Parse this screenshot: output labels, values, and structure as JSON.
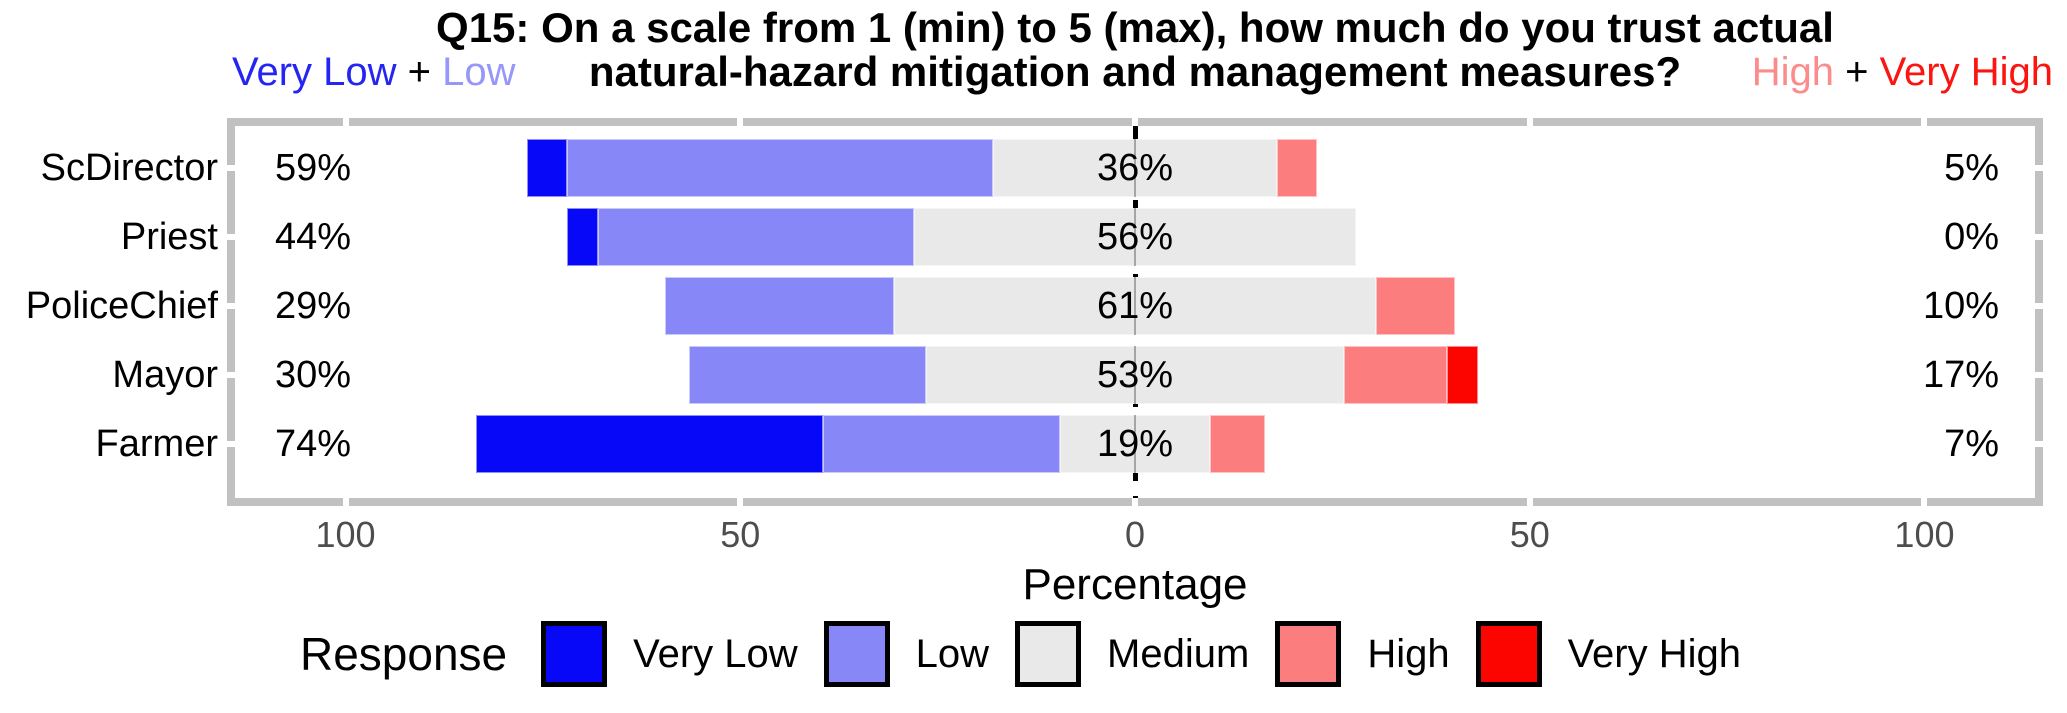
{
  "title": {
    "line1": "Q15: On a scale from 1 (min) to 5 (max), how much do you trust actual",
    "line2": "natural-hazard mitigation and management measures?"
  },
  "annotations": {
    "top_left": {
      "segments": [
        {
          "text": "Very Low",
          "color": "#2525f3"
        },
        {
          "text": " + ",
          "color": "#000000"
        },
        {
          "text": "Low",
          "color": "#9797fa"
        }
      ]
    },
    "top_right": {
      "segments": [
        {
          "text": "High",
          "color": "#fc8c8c"
        },
        {
          "text": " + ",
          "color": "#000000"
        },
        {
          "text": "Very High",
          "color": "#fb1511"
        }
      ]
    }
  },
  "chart_data": {
    "type": "bar",
    "variant": "diverging-stacked-likert",
    "categories": [
      "ScDirector",
      "Priest",
      "PoliceChief",
      "Mayor",
      "Farmer"
    ],
    "levels": [
      "Very Low",
      "Low",
      "Medium",
      "High",
      "Very High"
    ],
    "colors": {
      "Very Low": "#0808f8",
      "Low": "#8787f8",
      "Medium": "#e9e9e9",
      "High": "#fc7d7d",
      "Very High": "#fc0500"
    },
    "values": {
      "ScDirector": {
        "Very Low": 5,
        "Low": 54,
        "Medium": 36,
        "High": 5,
        "Very High": 0
      },
      "Priest": {
        "Very Low": 4,
        "Low": 40,
        "Medium": 56,
        "High": 0,
        "Very High": 0
      },
      "PoliceChief": {
        "Very Low": 0,
        "Low": 29,
        "Medium": 61,
        "High": 10,
        "Very High": 0
      },
      "Mayor": {
        "Very Low": 0,
        "Low": 30,
        "Medium": 53,
        "High": 13,
        "Very High": 4
      },
      "Farmer": {
        "Very Low": 44,
        "Low": 30,
        "Medium": 19,
        "High": 7,
        "Very High": 0
      }
    },
    "row_labels": {
      "left": [
        "59%",
        "44%",
        "29%",
        "30%",
        "74%"
      ],
      "center": [
        "36%",
        "56%",
        "61%",
        "53%",
        "19%"
      ],
      "right": [
        "5%",
        "0%",
        "10%",
        "17%",
        "7%"
      ]
    },
    "x_ticks": [
      {
        "label": "100",
        "value": -100
      },
      {
        "label": "50",
        "value": -50
      },
      {
        "label": "0",
        "value": 0
      },
      {
        "label": "50",
        "value": 50
      },
      {
        "label": "100",
        "value": 100
      }
    ],
    "x_range": [
      -114,
      114
    ],
    "xlabel": "Percentage",
    "zero_line": {
      "style": "dashed",
      "color": "#000000"
    },
    "panel_frame_color": "#c1c1c1",
    "tick_text_color": "#4d4d4d"
  },
  "legend": {
    "title": "Response",
    "items": [
      "Very Low",
      "Low",
      "Medium",
      "High",
      "Very High"
    ]
  }
}
